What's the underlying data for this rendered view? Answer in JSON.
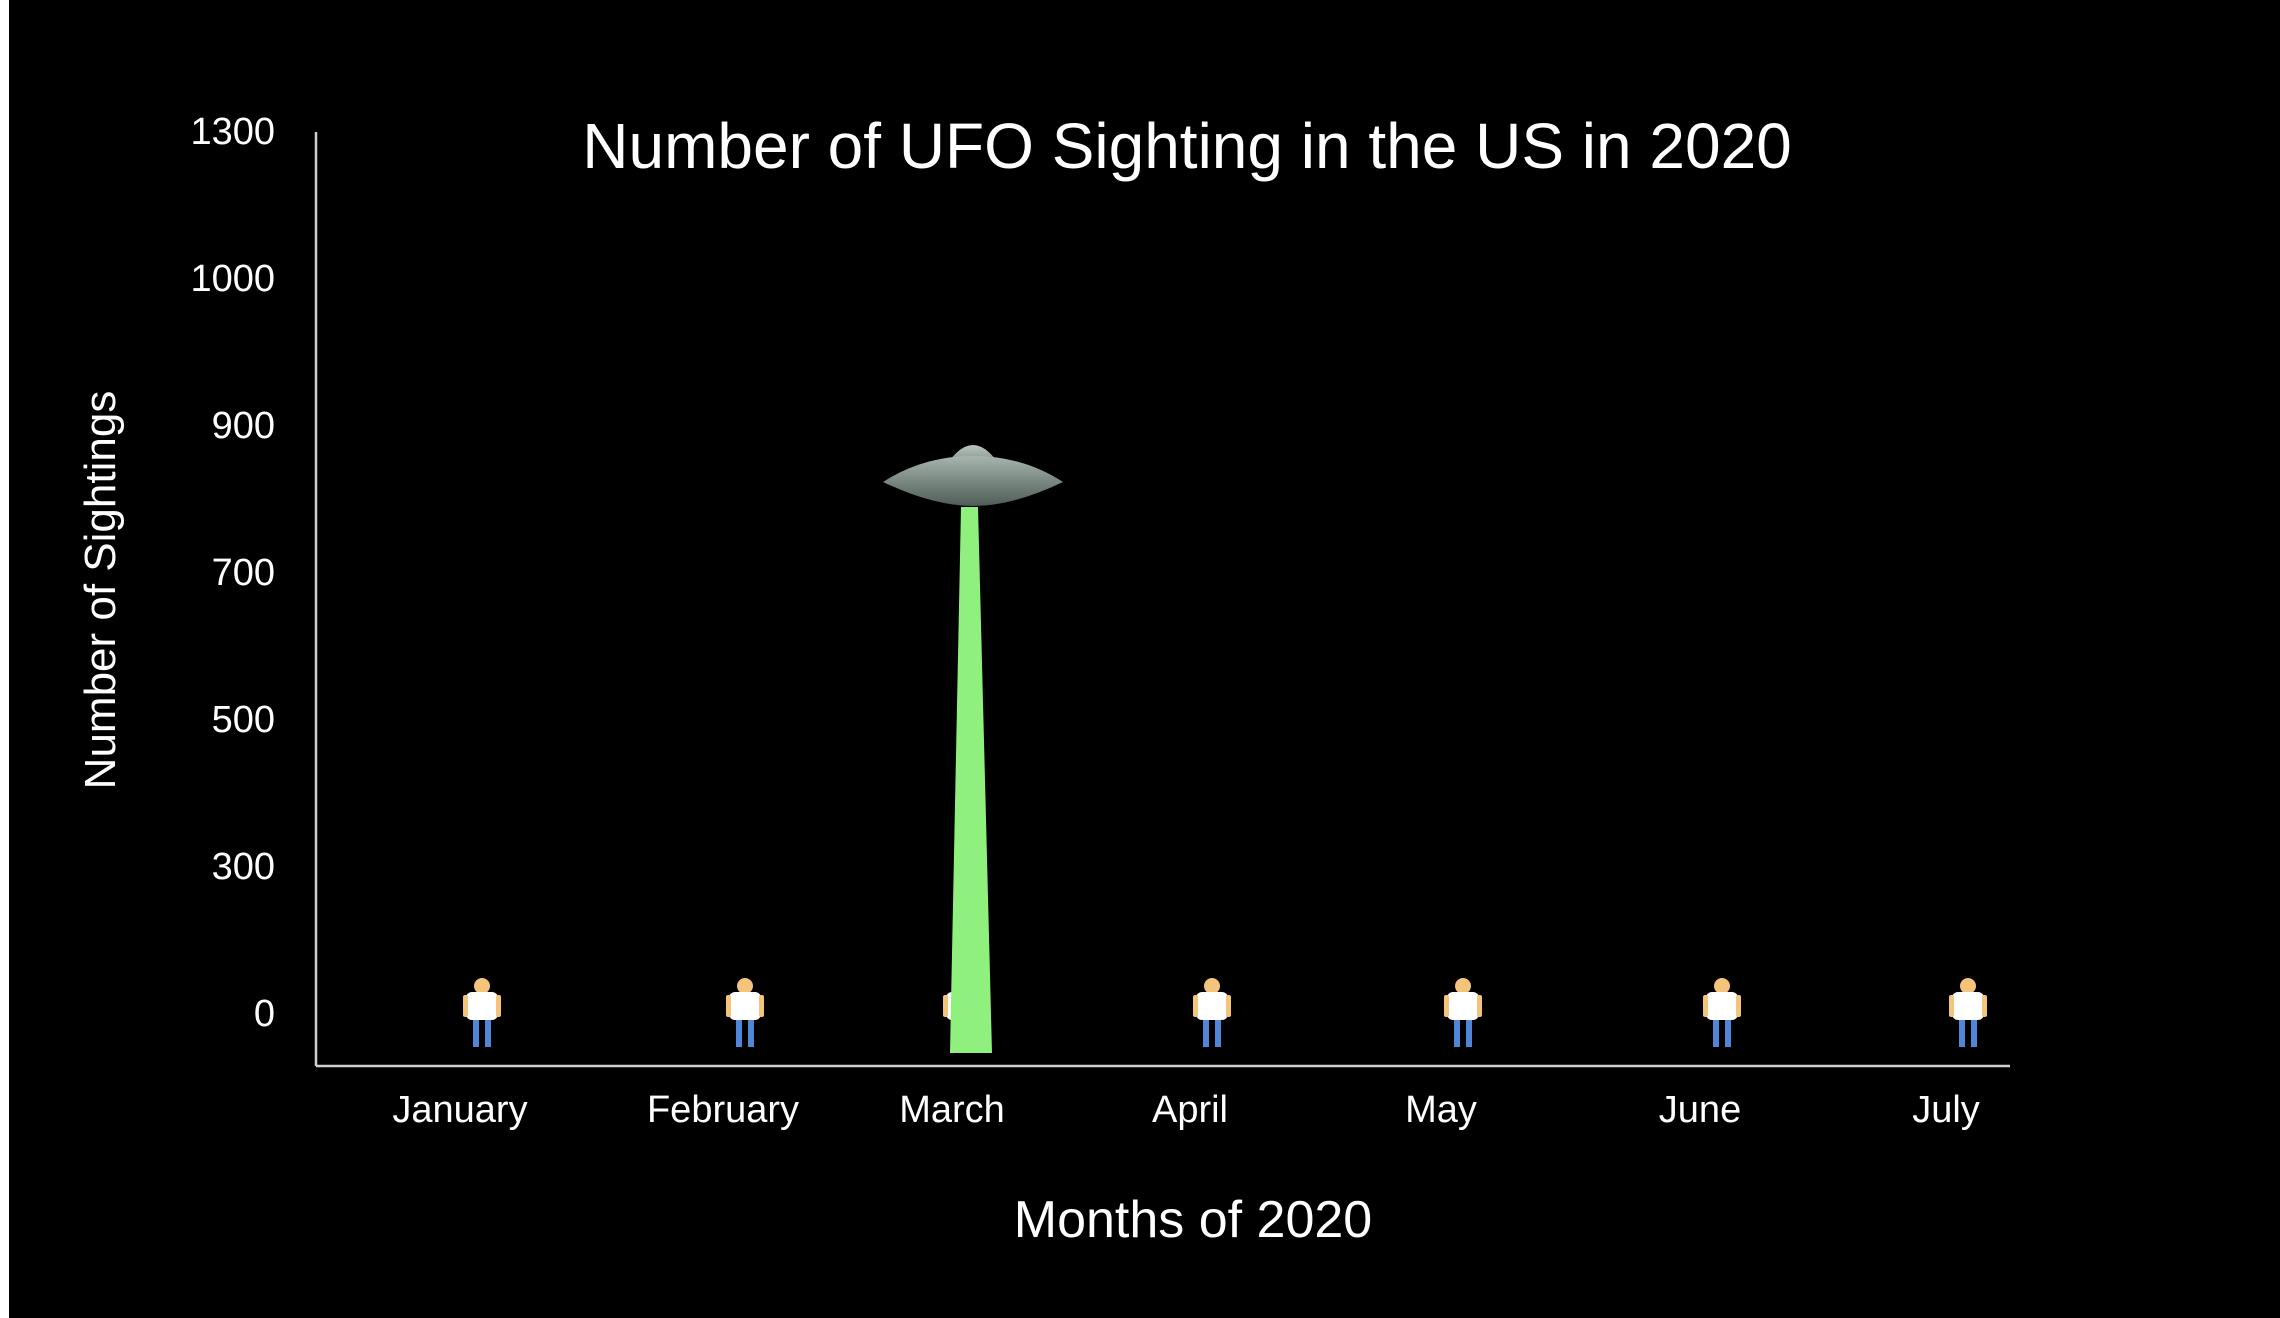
{
  "chart_data": {
    "type": "bar",
    "title": "Number of UFO Sighting in the US in 2020",
    "xlabel": "Months of 2020",
    "ylabel": "Number of Sightings",
    "categories": [
      "January",
      "February",
      "March",
      "April",
      "May",
      "June",
      "July"
    ],
    "values": [
      0,
      0,
      800,
      0,
      0,
      0,
      0
    ],
    "y_tick_labels": [
      "0",
      "300",
      "500",
      "700",
      "900",
      "1000",
      "1300"
    ],
    "ylim": [
      0,
      1300
    ],
    "grid": false,
    "legend": "none",
    "colors": {
      "background": "#000000",
      "beam": "#8ff07d",
      "axis": "#cfcfcf",
      "text": "#ffffff",
      "ufo": "#8a9a93",
      "person_shirt": "#ffffff",
      "person_skin": "#f3c47a",
      "person_legs": "#4f86d8"
    },
    "icons": {
      "bar_top": "ufo-icon",
      "baseline_marker": "person-icon"
    }
  }
}
